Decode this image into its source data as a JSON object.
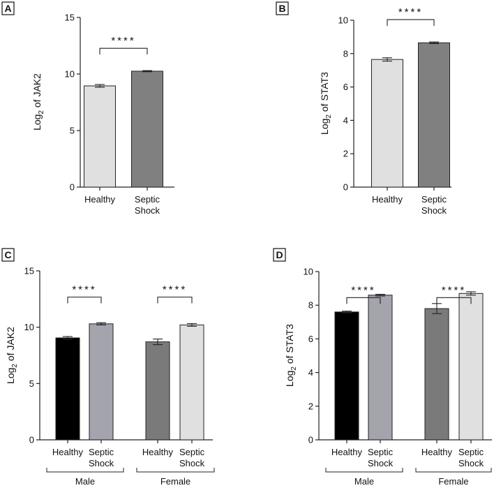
{
  "chart_data": [
    {
      "panel": "A",
      "type": "bar",
      "ylabel": "Log",
      "ylabel_sub": "2",
      "ylabel_rest": " of JAK2",
      "ylim": [
        0,
        15
      ],
      "yticks": [
        0,
        5,
        10,
        15
      ],
      "bars": [
        {
          "label": [
            "Healthy"
          ],
          "value": 8.95,
          "err": 0.12,
          "color": "#e0e0e0"
        },
        {
          "label": [
            "Septic",
            "Shock"
          ],
          "value": 10.25,
          "err": 0.05,
          "color": "#808080"
        }
      ],
      "significance": [
        {
          "from": 0,
          "to": 1,
          "text": "****"
        }
      ],
      "groups": []
    },
    {
      "panel": "B",
      "type": "bar",
      "ylabel": "Log",
      "ylabel_sub": "2",
      "ylabel_rest": " of STAT3",
      "ylim": [
        0,
        10
      ],
      "yticks": [
        0,
        2,
        4,
        6,
        8,
        10
      ],
      "bars": [
        {
          "label": [
            "Healthy"
          ],
          "value": 7.65,
          "err": 0.1,
          "color": "#e0e0e0"
        },
        {
          "label": [
            "Septic",
            "Shock"
          ],
          "value": 8.65,
          "err": 0.05,
          "color": "#808080"
        }
      ],
      "significance": [
        {
          "from": 0,
          "to": 1,
          "text": "****"
        }
      ],
      "groups": []
    },
    {
      "panel": "C",
      "type": "bar",
      "ylabel": "Log",
      "ylabel_sub": "2",
      "ylabel_rest": " of JAK2",
      "ylim": [
        0,
        15
      ],
      "yticks": [
        0,
        5,
        10,
        15
      ],
      "bars": [
        {
          "label": [
            "Healthy"
          ],
          "value": 9.05,
          "err": 0.12,
          "color": "#000000"
        },
        {
          "label": [
            "Septic",
            "Shock"
          ],
          "value": 10.3,
          "err": 0.1,
          "color": "#a4a4ad"
        },
        {
          "label": [
            "Healthy"
          ],
          "value": 8.7,
          "err": 0.25,
          "color": "#7a7a7a"
        },
        {
          "label": [
            "Septic",
            "Shock"
          ],
          "value": 10.2,
          "err": 0.12,
          "color": "#e0e0e0"
        }
      ],
      "significance": [
        {
          "from": 0,
          "to": 1,
          "text": "****"
        },
        {
          "from": 2,
          "to": 3,
          "text": "****"
        }
      ],
      "groups": [
        {
          "from": 0,
          "to": 1,
          "label": "Male"
        },
        {
          "from": 2,
          "to": 3,
          "label": "Female"
        }
      ]
    },
    {
      "panel": "D",
      "type": "bar",
      "ylabel": "Log",
      "ylabel_sub": "2",
      "ylabel_rest": " of STAT3",
      "ylim": [
        0,
        10
      ],
      "yticks": [
        0,
        2,
        4,
        6,
        8,
        10
      ],
      "bars": [
        {
          "label": [
            "Healthy"
          ],
          "value": 7.6,
          "err": 0.05,
          "color": "#000000"
        },
        {
          "label": [
            "Septic",
            "Shock"
          ],
          "value": 8.6,
          "err": 0.05,
          "color": "#a4a4ad"
        },
        {
          "label": [
            "Healthy"
          ],
          "value": 7.8,
          "err": 0.3,
          "color": "#7a7a7a"
        },
        {
          "label": [
            "Septic",
            "Shock"
          ],
          "value": 8.7,
          "err": 0.1,
          "color": "#e0e0e0"
        }
      ],
      "significance": [
        {
          "from": 0,
          "to": 1,
          "text": "****"
        },
        {
          "from": 2,
          "to": 3,
          "text": "****"
        }
      ],
      "groups": [
        {
          "from": 0,
          "to": 1,
          "label": "Male"
        },
        {
          "from": 2,
          "to": 3,
          "label": "Female"
        }
      ]
    }
  ]
}
